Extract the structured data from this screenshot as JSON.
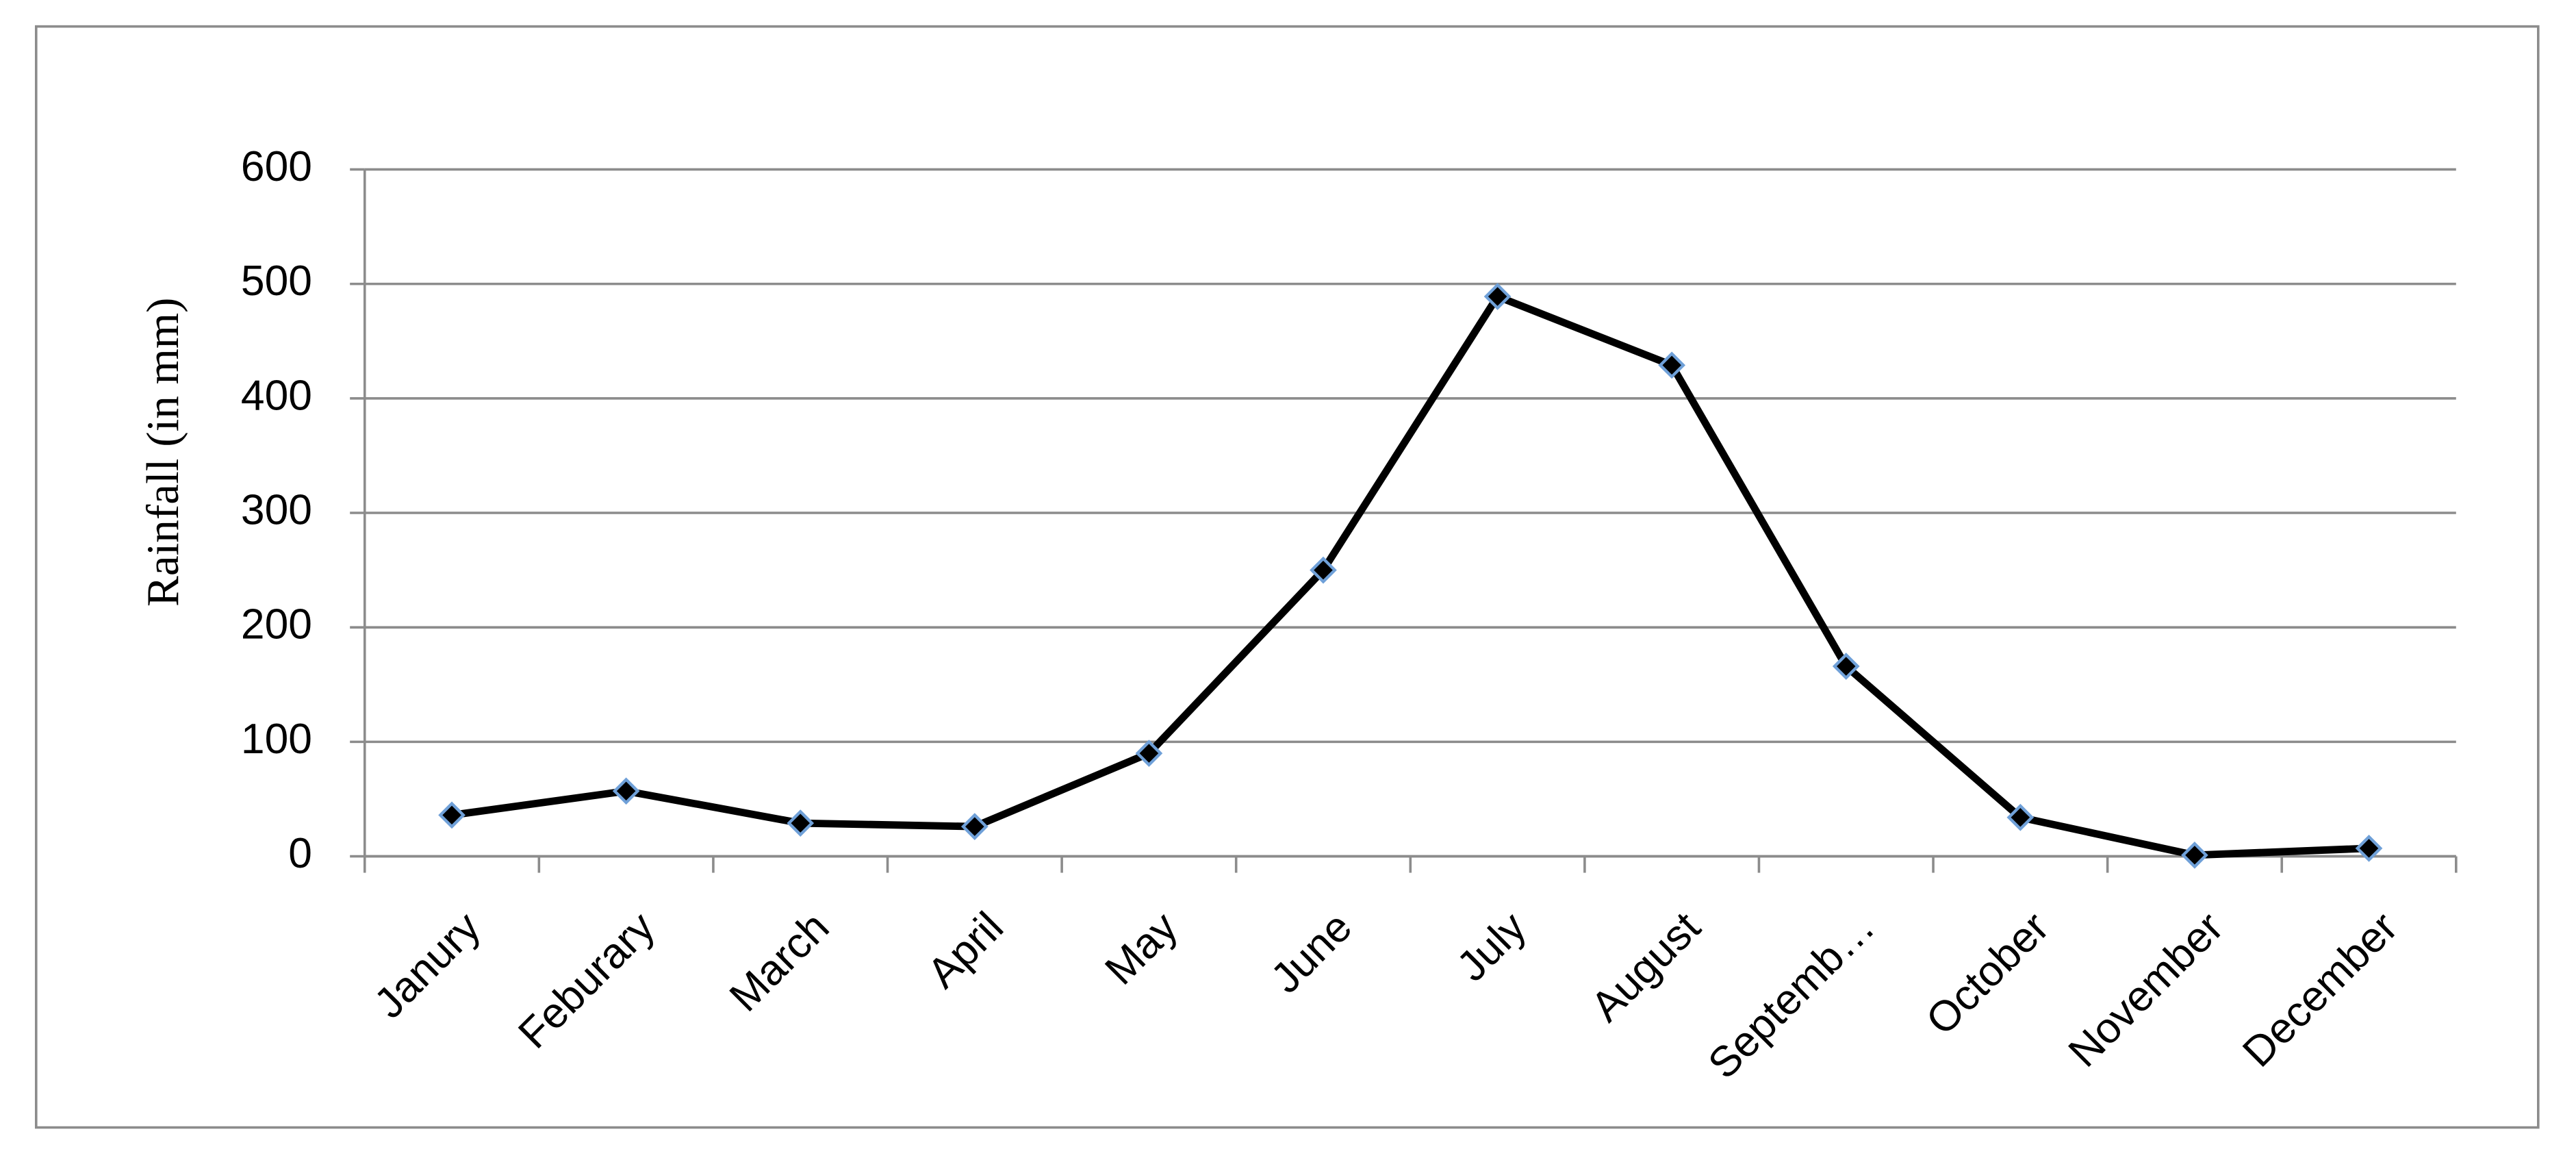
{
  "chart_data": {
    "type": "line",
    "y_label": "Rainfall (in mm)",
    "categories": [
      "Janury",
      "Feburary",
      "March",
      "April",
      "May",
      "June",
      "July",
      "August",
      "Septemb…",
      "October",
      "November",
      "December"
    ],
    "series": [
      {
        "name": "Rainfall",
        "color": "#000000",
        "values": [
          36,
          57,
          29,
          26,
          90,
          250,
          489,
          429,
          166,
          34,
          1,
          7
        ]
      }
    ],
    "ylim": [
      0,
      600
    ],
    "yticks": [
      0,
      100,
      200,
      300,
      400,
      500,
      600
    ],
    "grid": true
  }
}
